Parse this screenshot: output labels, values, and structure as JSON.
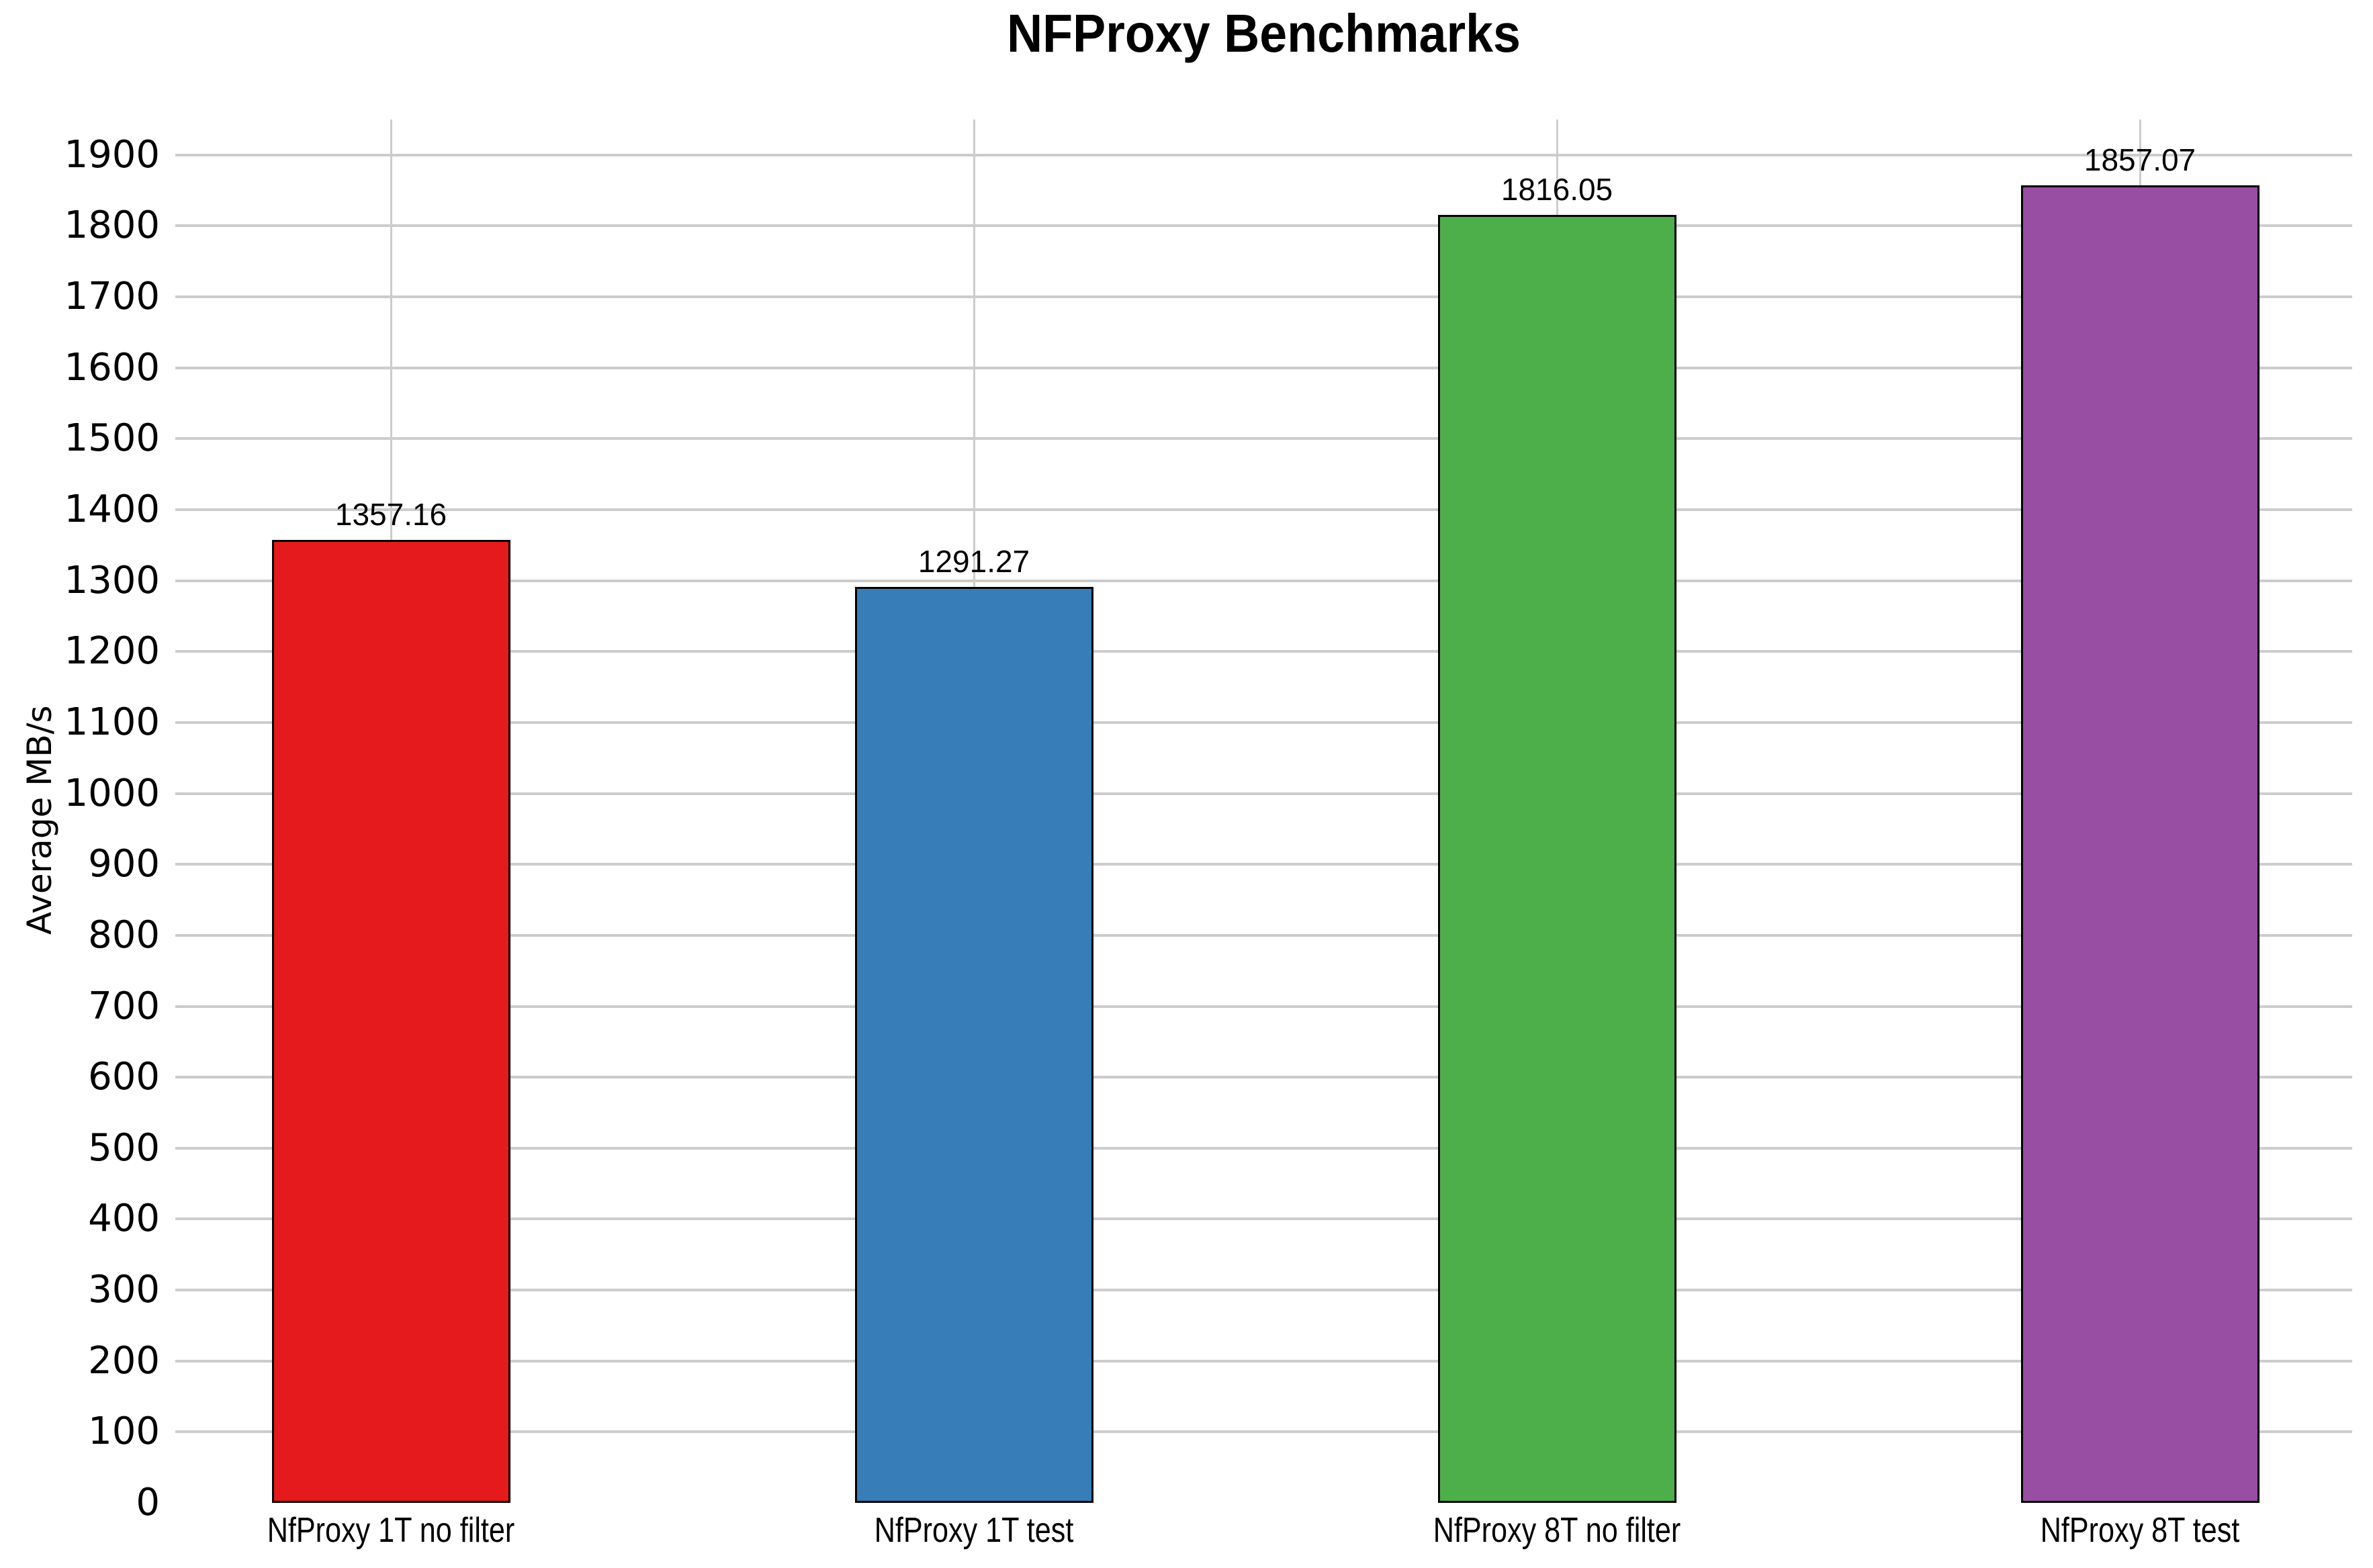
{
  "chart_data": {
    "type": "bar",
    "title": "NFProxy Benchmarks",
    "xlabel": "",
    "ylabel": "Average MB/s",
    "categories": [
      "NfProxy 1T no filter",
      "NfProxy 1T test",
      "NfProxy 8T no filter",
      "NfProxy 8T test"
    ],
    "values": [
      1357.16,
      1291.27,
      1816.05,
      1857.07
    ],
    "value_labels": [
      "1357.16",
      "1291.27",
      "1816.05",
      "1857.07"
    ],
    "bar_colors": [
      "#e41a1c",
      "#377eb8",
      "#4daf4a",
      "#984ea3"
    ],
    "bar_border_color": "#000000",
    "ylim": [
      0,
      1950
    ],
    "ytick_min": 0,
    "ytick_max": 1900,
    "ytick_step": 100,
    "grid": {
      "horizontal": true,
      "vertical_at_bars": true,
      "color": "#cccccc"
    },
    "legend_position": "none",
    "background_color": "#ffffff"
  }
}
